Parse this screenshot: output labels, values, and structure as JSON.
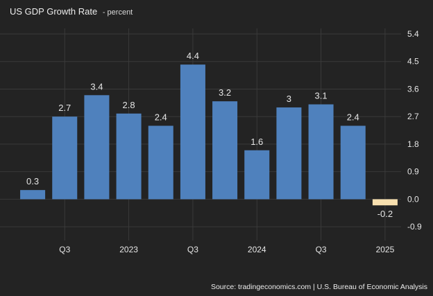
{
  "header": {
    "title": "US GDP Growth Rate",
    "subtitle": "- percent"
  },
  "footer": {
    "source": "Source: tradingeconomics.com | U.S. Bureau of Economic Analysis"
  },
  "colors": {
    "background": "#232323",
    "positive_bar": "#4f81bd",
    "negative_bar": "#f7dfae",
    "grid": "#3a3a3a",
    "text": "#e6e6e6"
  },
  "chart_data": {
    "type": "bar",
    "title": "US GDP Growth Rate",
    "subtitle": "- percent",
    "values": [
      0.3,
      2.7,
      3.4,
      2.8,
      2.4,
      4.4,
      3.2,
      1.6,
      3.0,
      3.1,
      2.4,
      -0.2
    ],
    "value_labels": [
      "0.3",
      "2.7",
      "3.4",
      "2.8",
      "2.4",
      "4.4",
      "3.2",
      "1.6",
      "3",
      "3.1",
      "2.4",
      "-0.2"
    ],
    "x_ticks": [
      {
        "label": "Q3",
        "index": 1.5
      },
      {
        "label": "2023",
        "index": 3.5
      },
      {
        "label": "Q3",
        "index": 5.5
      },
      {
        "label": "2024",
        "index": 7.5
      },
      {
        "label": "Q3",
        "index": 9.5
      },
      {
        "label": "2025",
        "index": 11.5
      }
    ],
    "y_ticks": [
      "5.4",
      "4.5",
      "3.6",
      "2.7",
      "1.8",
      "0.9",
      "0.0",
      "-0.9"
    ],
    "ylim": [
      -1.35,
      5.4
    ],
    "grid": true,
    "xlabel": "",
    "ylabel": ""
  }
}
